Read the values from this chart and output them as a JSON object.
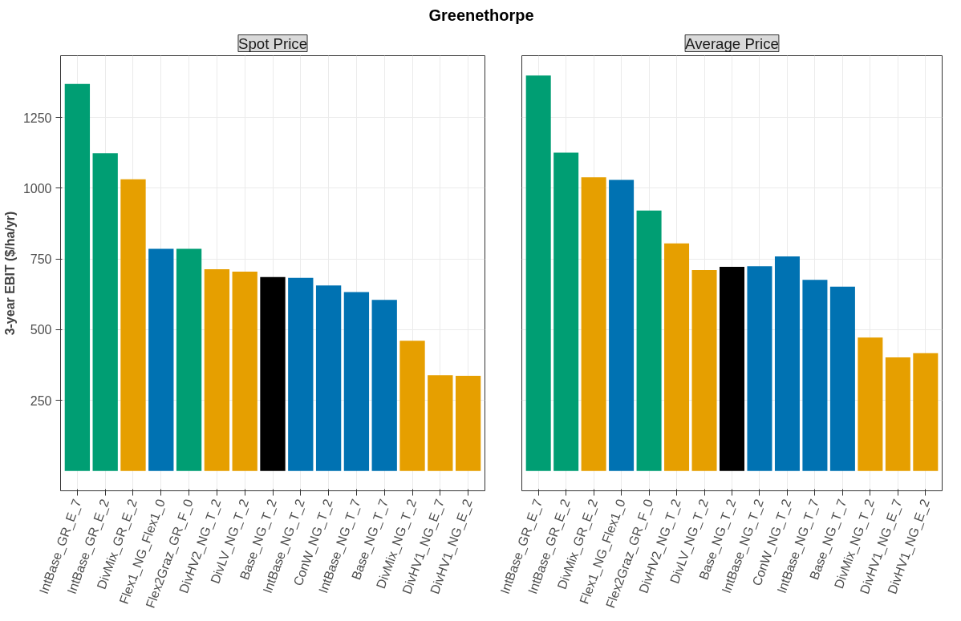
{
  "chart_data": [
    {
      "type": "bar",
      "title": "Greenethorpe",
      "subtitle": "Spot Price",
      "ylabel": "3-year EBIT ($/ha/yr)",
      "categories": [
        "IntBase_GR_E_7",
        "IntBase_GR_E_2",
        "DivMix_GR_E_2",
        "Flex1_NG_Flex1_0",
        "Flex2Graz_GR_F_0",
        "DivHV2_NG_T_2",
        "DivLV_NG_T_2",
        "Base_NG_T_2",
        "IntBase_NG_T_2",
        "ConW_NG_T_2",
        "IntBase_NG_T_7",
        "Base_NG_T_7",
        "DivMix_NG_T_2",
        "DivHV1_NG_E_7",
        "DivHV1_NG_E_2"
      ],
      "values": [
        1369,
        1124,
        1032,
        786,
        786,
        714,
        705,
        686,
        683,
        656,
        633,
        605,
        461,
        339,
        337
      ],
      "colors": [
        "#009e73",
        "#009e73",
        "#e69f00",
        "#0072b2",
        "#009e73",
        "#e69f00",
        "#e69f00",
        "#000000",
        "#0072b2",
        "#0072b2",
        "#0072b2",
        "#0072b2",
        "#e69f00",
        "#e69f00",
        "#e69f00"
      ],
      "ylim": [
        -70,
        1469
      ],
      "yticks": [
        250,
        500,
        750,
        1000,
        1250
      ],
      "grid": true
    },
    {
      "type": "bar",
      "subtitle": "Average Price",
      "categories": [
        "IntBase_GR_E_7",
        "IntBase_GR_E_2",
        "DivMix_GR_E_2",
        "Flex1_NG_Flex1_0",
        "Flex2Graz_GR_F_0",
        "DivHV2_NG_T_2",
        "DivLV_NG_T_2",
        "Base_NG_T_2",
        "IntBase_NG_T_2",
        "ConW_NG_T_2",
        "IntBase_NG_T_7",
        "Base_NG_T_7",
        "DivMix_NG_T_2",
        "DivHV1_NG_E_7",
        "DivHV1_NG_E_2"
      ],
      "values": [
        1399,
        1126,
        1039,
        1030,
        921,
        805,
        711,
        722,
        724,
        759,
        676,
        652,
        472,
        402,
        417
      ],
      "colors": [
        "#009e73",
        "#009e73",
        "#e69f00",
        "#0072b2",
        "#009e73",
        "#e69f00",
        "#e69f00",
        "#000000",
        "#0072b2",
        "#0072b2",
        "#0072b2",
        "#0072b2",
        "#e69f00",
        "#e69f00",
        "#e69f00"
      ],
      "ylim": [
        -70,
        1469
      ],
      "yticks": [
        250,
        500,
        750,
        1000,
        1250
      ],
      "grid": true,
      "tick_labels": "x"
    }
  ]
}
